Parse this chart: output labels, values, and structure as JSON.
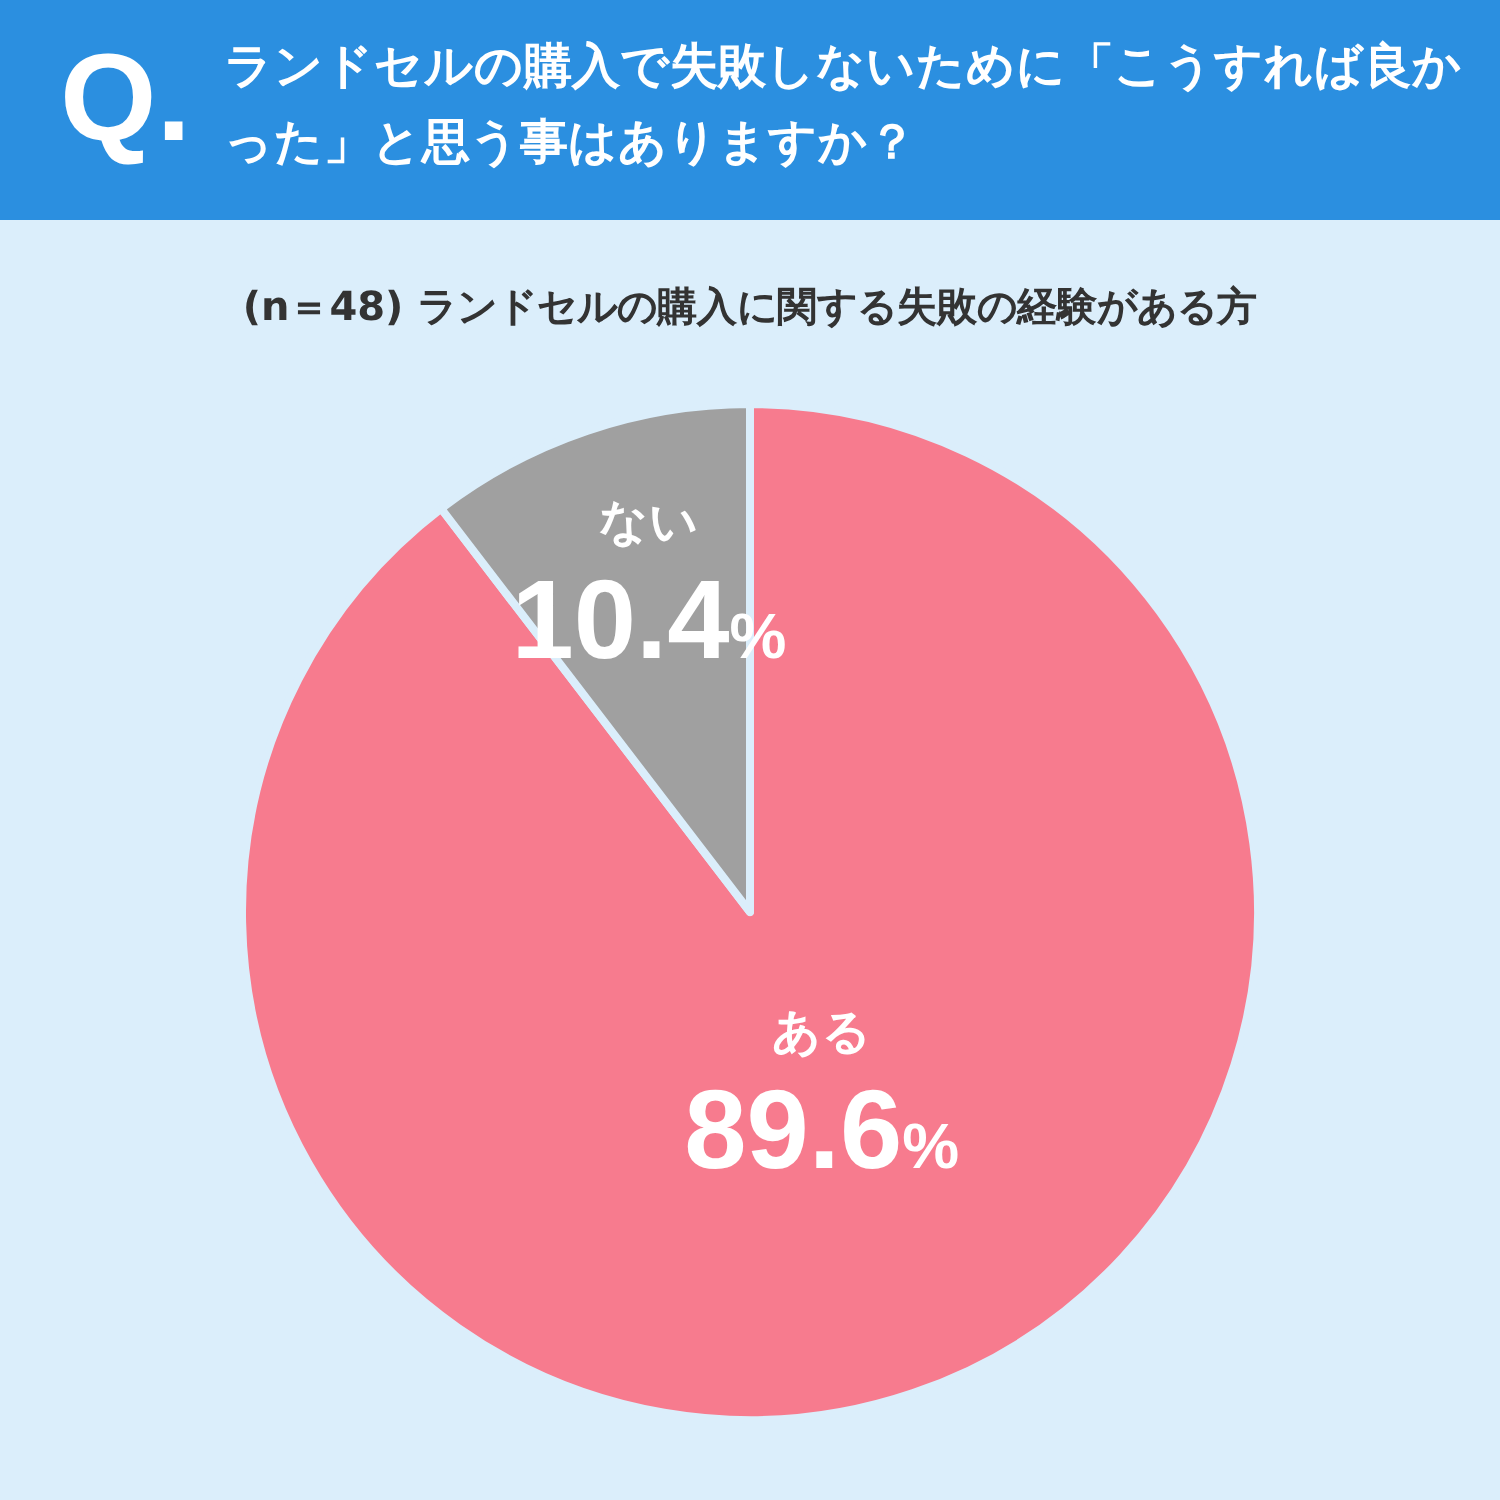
{
  "chart_data": {
    "type": "pie",
    "title": "ランドセルの購入で失敗しないために「こうすれば良かった」と思う事はありますか？",
    "subtitle": "(n＝48) ランドセルの購入に関する失敗の経験がある方",
    "annotations": [
      "Q."
    ],
    "categories": [
      "ある",
      "ない"
    ],
    "values": [
      89.6,
      10.4
    ],
    "colors": [
      "#f77b8e",
      "#a0a0a0"
    ],
    "value_labels": [
      "89.6%",
      "10.4%"
    ]
  }
}
